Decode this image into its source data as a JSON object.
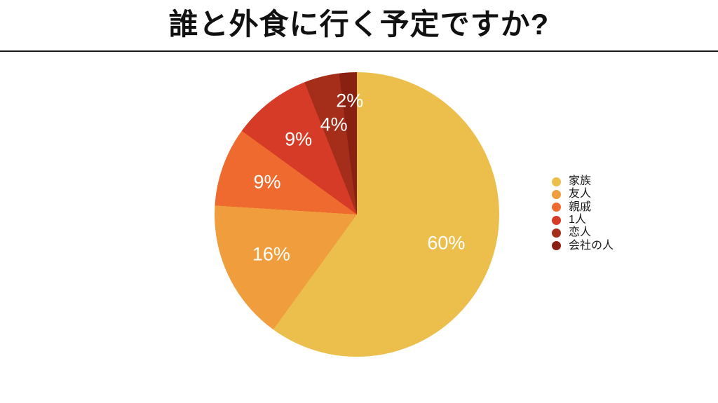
{
  "page": {
    "background": "#ffffff",
    "divider_color": "#1b1b1b",
    "title_color": "#111111"
  },
  "chart_data": {
    "type": "pie",
    "title": "誰と外食に行く予定ですか?",
    "legend_position": "right",
    "start_angle_deg": 0,
    "direction": "clockwise",
    "label_color": "#ffffff",
    "slices": [
      {
        "label": "家族",
        "value_pct": 60,
        "display": "60%",
        "color": "#ECBE4B"
      },
      {
        "label": "友人",
        "value_pct": 16,
        "display": "16%",
        "color": "#F09D3D"
      },
      {
        "label": "親戚",
        "value_pct": 9,
        "display": "9%",
        "color": "#EF6A2E"
      },
      {
        "label": "1人",
        "value_pct": 9,
        "display": "9%",
        "color": "#D63B28"
      },
      {
        "label": "恋人",
        "value_pct": 4,
        "display": "4%",
        "color": "#A52E1B"
      },
      {
        "label": "会社の人",
        "value_pct": 2,
        "display": "2%",
        "color": "#8A2012"
      }
    ]
  }
}
